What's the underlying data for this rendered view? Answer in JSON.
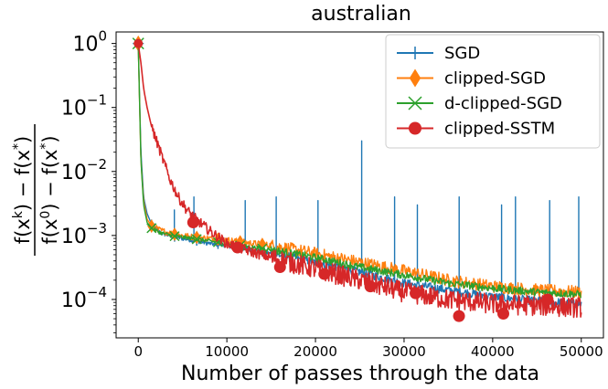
{
  "chart_data": {
    "type": "line",
    "title": "australian",
    "xlabel": "Number of passes through the data",
    "ylabel": {
      "numerator": "f(x^k) − f(x^*)",
      "denominator": "f(x^0) − f(x^*)"
    },
    "x_scale": "linear",
    "y_scale": "log",
    "xlim": [
      -2500,
      52500
    ],
    "ylim_log10": [
      -4.6,
      0.18
    ],
    "x_ticks": [
      0,
      10000,
      20000,
      30000,
      40000,
      50000
    ],
    "x_tick_labels": [
      "0",
      "10000",
      "20000",
      "30000",
      "40000",
      "50000"
    ],
    "y_ticks_log10": [
      0,
      -1,
      -2,
      -3,
      -4
    ],
    "y_tick_labels": [
      {
        "base": "10",
        "exp": "0"
      },
      {
        "base": "10",
        "exp": "−1"
      },
      {
        "base": "10",
        "exp": "−2"
      },
      {
        "base": "10",
        "exp": "−3"
      },
      {
        "base": "10",
        "exp": "−4"
      }
    ],
    "legend_position": "top-right",
    "series": [
      {
        "name": "SGD",
        "color": "#1f77b4",
        "marker": "plus",
        "x": [
          0,
          300,
          600,
          1000,
          1500,
          2500,
          4000,
          6000,
          8000,
          10000,
          12000,
          15000,
          20000,
          25000,
          30000,
          35000,
          40000,
          45000,
          50000
        ],
        "y": [
          1.0,
          0.02,
          0.004,
          0.0022,
          0.0015,
          0.0011,
          0.00095,
          0.00085,
          0.00075,
          0.0007,
          0.00062,
          0.00052,
          0.00038,
          0.00027,
          0.00018,
          0.00014,
          0.00011,
          9.5e-05,
          8.5e-05
        ],
        "spikes": [
          {
            "x": 4100,
            "y": 0.0025
          },
          {
            "x": 6300,
            "y": 0.004
          },
          {
            "x": 12100,
            "y": 0.0035
          },
          {
            "x": 15600,
            "y": 0.004
          },
          {
            "x": 20300,
            "y": 0.0035
          },
          {
            "x": 25200,
            "y": 0.03
          },
          {
            "x": 28900,
            "y": 0.004
          },
          {
            "x": 31500,
            "y": 0.003
          },
          {
            "x": 36200,
            "y": 0.004
          },
          {
            "x": 41000,
            "y": 0.003
          },
          {
            "x": 42600,
            "y": 0.004
          },
          {
            "x": 46400,
            "y": 0.0035
          },
          {
            "x": 49700,
            "y": 0.004
          }
        ],
        "noise_log10": 0.07
      },
      {
        "name": "clipped-SGD",
        "color": "#ff7f0e",
        "marker": "diamond",
        "x": [
          0,
          300,
          600,
          1000,
          1500,
          2500,
          4000,
          6000,
          8000,
          10000,
          12000,
          15000,
          20000,
          25000,
          30000,
          35000,
          40000,
          45000,
          50000
        ],
        "y": [
          1.0,
          0.015,
          0.0035,
          0.0018,
          0.0014,
          0.0012,
          0.00105,
          0.00095,
          0.0009,
          0.00085,
          0.00078,
          0.0007,
          0.00052,
          0.00038,
          0.00028,
          0.0002,
          0.00016,
          0.00014,
          0.00013
        ],
        "spikes": [],
        "noise_log10": 0.1
      },
      {
        "name": "d-clipped-SGD",
        "color": "#2ca02c",
        "marker": "x",
        "x": [
          0,
          300,
          600,
          1000,
          1500,
          2500,
          4000,
          6000,
          8000,
          10000,
          12000,
          15000,
          20000,
          25000,
          30000,
          35000,
          40000,
          45000,
          50000
        ],
        "y": [
          1.0,
          0.015,
          0.003,
          0.0016,
          0.0013,
          0.0011,
          0.00098,
          0.0009,
          0.00082,
          0.00075,
          0.00068,
          0.0006,
          0.00045,
          0.00032,
          0.00024,
          0.00018,
          0.00015,
          0.00013,
          0.00012
        ],
        "spikes": [],
        "noise_log10": 0.06
      },
      {
        "name": "clipped-SSTM",
        "color": "#d62728",
        "marker": "circle",
        "x": [
          0,
          300,
          600,
          1000,
          1500,
          2500,
          3500,
          4500,
          5500,
          6500,
          8000,
          10000,
          12000,
          15000,
          20000,
          25000,
          30000,
          35000,
          40000,
          45000,
          50000
        ],
        "y": [
          1.0,
          0.5,
          0.2,
          0.1,
          0.05,
          0.02,
          0.008,
          0.004,
          0.0025,
          0.0018,
          0.0012,
          0.00075,
          0.0006,
          0.00045,
          0.0003,
          0.0002,
          0.00013,
          0.0001,
          8.5e-05,
          8e-05,
          7.5e-05
        ],
        "spikes": [],
        "noise_log10": 0.16,
        "marker_points": [
          {
            "x": 6200,
            "y": 0.0016
          },
          {
            "x": 11200,
            "y": 0.00065
          },
          {
            "x": 16000,
            "y": 0.00032
          },
          {
            "x": 21000,
            "y": 0.00025
          },
          {
            "x": 26200,
            "y": 0.00016
          },
          {
            "x": 31300,
            "y": 0.000125
          },
          {
            "x": 36200,
            "y": 5.5e-05
          },
          {
            "x": 41200,
            "y": 6e-05
          },
          {
            "x": 46200,
            "y": 0.0001
          }
        ]
      }
    ]
  }
}
